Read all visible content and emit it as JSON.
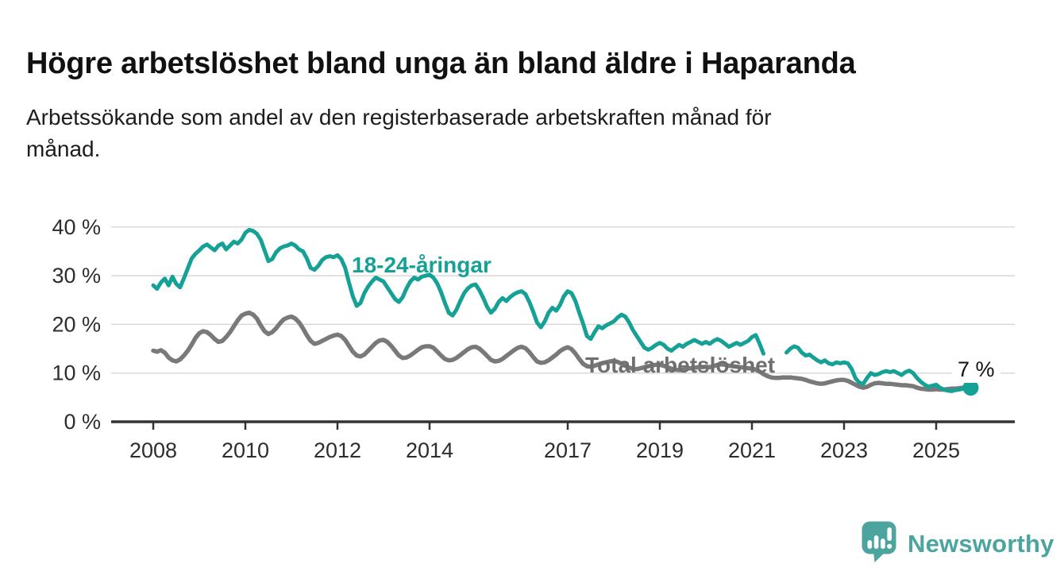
{
  "header": {
    "title": "Högre arbetslöshet bland unga än bland äldre i Haparanda",
    "subtitle_lines": [
      "Arbetssökande som andel av den registerbaserade arbetskraften månad för",
      "månad."
    ]
  },
  "annotations": {
    "young_series_label": "18-24-åringar",
    "total_series_label": "Total arbetslöshet",
    "end_value_label": "7 %"
  },
  "footer": {
    "brand_name": "Newsworthy",
    "logo_icon": "speech-bubble-bar-chart-exclamation",
    "brand_color": "#4BA59E"
  },
  "colors": {
    "young_line": "#15A195",
    "total_line": "#797979",
    "grid": "#D8D8D8",
    "axis": "#333333",
    "axis_text": "#2D2D2D",
    "title_text": "#111111"
  },
  "chart_data": {
    "type": "line",
    "unit": "%",
    "x_range_note": "monthly, Jan 2008 - Oct 2025",
    "ylim": [
      0,
      42
    ],
    "grid": true,
    "legend_position": "inline-labels",
    "y_ticks": [
      {
        "label": "0 %",
        "value": 0
      },
      {
        "label": "10 %",
        "value": 10
      },
      {
        "label": "20 %",
        "value": 20
      },
      {
        "label": "30 %",
        "value": 30
      },
      {
        "label": "40 %",
        "value": 40
      }
    ],
    "x_ticks": [
      {
        "label": "2008",
        "year": 2008
      },
      {
        "label": "2010",
        "year": 2010
      },
      {
        "label": "2012",
        "year": 2012
      },
      {
        "label": "2014",
        "year": 2014
      },
      {
        "label": "2017",
        "year": 2017
      },
      {
        "label": "2019",
        "year": 2019
      },
      {
        "label": "2021",
        "year": 2021
      },
      {
        "label": "2023",
        "year": 2023
      },
      {
        "label": "2025",
        "year": 2025
      }
    ],
    "series": [
      {
        "name": "18-24-åringar",
        "color": "#15A195",
        "width": 5,
        "monthly": {
          "2008": [
            28.0,
            27.3,
            28.6,
            29.4,
            28.0,
            29.8,
            28.3,
            27.6,
            29.5,
            31.5,
            33.5,
            34.5
          ],
          "2009": [
            35.2,
            36.0,
            36.4,
            35.8,
            35.2,
            36.2,
            36.6,
            35.4,
            36.2,
            37.0,
            36.6,
            37.4
          ],
          "2010": [
            38.8,
            39.4,
            39.2,
            38.6,
            37.4,
            35.2,
            33.0,
            33.4,
            34.8,
            35.6,
            36.0,
            36.2
          ],
          "2011": [
            36.6,
            36.2,
            35.4,
            35.0,
            33.6,
            31.6,
            31.2,
            32.0,
            33.2,
            33.8,
            34.0,
            33.8
          ],
          "2012": [
            34.2,
            33.4,
            31.6,
            28.6,
            25.8,
            23.8,
            24.4,
            26.4,
            27.8,
            28.8,
            29.6,
            29.2
          ],
          "2013": [
            28.8,
            27.6,
            26.4,
            25.2,
            24.6,
            25.6,
            27.4,
            28.8,
            29.6,
            29.2,
            29.8,
            30.0
          ],
          "2014": [
            30.2,
            29.6,
            28.4,
            26.6,
            24.4,
            22.4,
            21.8,
            23.0,
            24.8,
            26.4,
            27.4,
            28.0
          ],
          "2015": [
            28.2,
            27.0,
            25.4,
            23.6,
            22.4,
            23.2,
            24.6,
            25.4,
            24.8,
            25.6,
            26.2,
            26.6
          ],
          "2016": [
            26.8,
            26.2,
            24.6,
            22.6,
            20.4,
            19.4,
            20.6,
            22.4,
            23.4,
            22.8,
            24.0,
            25.8
          ],
          "2017": [
            26.8,
            26.4,
            24.8,
            22.4,
            20.2,
            17.6,
            17.0,
            18.4,
            19.6,
            19.2,
            19.8,
            20.2
          ],
          "2018": [
            20.6,
            21.4,
            22.0,
            21.6,
            20.4,
            18.8,
            17.6,
            16.4,
            15.2,
            14.8,
            15.2,
            15.8
          ],
          "2019": [
            16.2,
            15.8,
            15.0,
            14.6,
            15.2,
            15.8,
            15.4,
            16.0,
            16.4,
            16.8,
            16.4,
            16.0
          ],
          "2020": [
            16.4,
            16.0,
            16.6,
            17.0,
            16.6,
            16.0,
            15.4,
            15.8,
            16.2,
            15.8,
            16.2,
            16.6
          ],
          "2021": [
            17.4,
            17.8,
            16.0,
            14.0,
            null,
            null,
            null,
            null,
            null,
            14.2,
            15.0,
            15.5
          ],
          "2022": [
            15.2,
            14.2,
            13.6,
            13.8,
            13.2,
            12.6,
            12.2,
            12.6,
            12.0,
            11.8,
            12.2,
            12.0
          ],
          "2023": [
            12.2,
            12.0,
            10.8,
            8.9,
            8.0,
            7.8,
            9.0,
            10.0,
            9.6,
            9.8,
            10.2,
            10.4
          ],
          "2024": [
            10.2,
            10.4,
            10.0,
            9.6,
            10.2,
            10.5,
            10.0,
            9.0,
            8.2,
            7.6,
            7.2,
            7.4
          ],
          "2025": [
            7.6,
            7.0,
            6.6,
            6.4,
            6.3,
            6.5,
            6.6,
            6.8,
            6.9,
            7.0
          ]
        }
      },
      {
        "name": "Total arbetslöshet",
        "color": "#797979",
        "width": 5.5,
        "monthly": {
          "2008": [
            14.6,
            14.4,
            14.7,
            14.2,
            13.2,
            12.6,
            12.4,
            12.8,
            13.6,
            14.6,
            15.8,
            17.2
          ],
          "2009": [
            18.2,
            18.6,
            18.4,
            17.8,
            17.0,
            16.4,
            16.6,
            17.4,
            18.4,
            19.6,
            20.8,
            21.8
          ],
          "2010": [
            22.2,
            22.4,
            22.0,
            21.2,
            19.8,
            18.6,
            18.0,
            18.4,
            19.2,
            20.2,
            21.0,
            21.4
          ],
          "2011": [
            21.6,
            21.2,
            20.4,
            19.2,
            17.8,
            16.6,
            16.0,
            16.2,
            16.6,
            17.0,
            17.4,
            17.7
          ],
          "2012": [
            17.9,
            17.6,
            16.8,
            15.6,
            14.4,
            13.6,
            13.4,
            13.8,
            14.6,
            15.4,
            16.2,
            16.7
          ],
          "2013": [
            16.8,
            16.4,
            15.6,
            14.6,
            13.6,
            13.1,
            13.2,
            13.6,
            14.2,
            14.8,
            15.3,
            15.5
          ],
          "2014": [
            15.5,
            15.2,
            14.4,
            13.6,
            12.9,
            12.6,
            12.7,
            13.1,
            13.7,
            14.3,
            14.9,
            15.3
          ],
          "2015": [
            15.4,
            15.0,
            14.3,
            13.5,
            12.7,
            12.4,
            12.5,
            12.9,
            13.5,
            14.1,
            14.7,
            15.2
          ],
          "2016": [
            15.4,
            15.1,
            14.3,
            13.3,
            12.4,
            12.1,
            12.2,
            12.6,
            13.2,
            13.8,
            14.5,
            15.0
          ],
          "2017": [
            15.3,
            14.9,
            14.0,
            12.9,
            11.9,
            11.4,
            11.3,
            11.5,
            11.8,
            12.0,
            12.2,
            12.4
          ],
          "2018": [
            12.5,
            12.3,
            11.9,
            11.5,
            11.1,
            10.9,
            10.8,
            11.0,
            11.2,
            11.4,
            11.6,
            11.7
          ],
          "2019": [
            11.7,
            11.5,
            11.2,
            10.9,
            10.7,
            10.6,
            10.7,
            10.9,
            11.0,
            11.1,
            11.2,
            11.2
          ],
          "2020": [
            11.3,
            11.2,
            11.4,
            11.7,
            11.8,
            11.7,
            11.5,
            11.4,
            11.3,
            11.2,
            11.1,
            11.0
          ],
          "2021": [
            10.9,
            10.7,
            10.3,
            9.8,
            9.4,
            9.1,
            9.0,
            9.0,
            9.1,
            9.1,
            9.1,
            9.0
          ],
          "2022": [
            8.9,
            8.8,
            8.6,
            8.3,
            8.1,
            7.9,
            7.8,
            7.9,
            8.1,
            8.3,
            8.5,
            8.6
          ],
          "2023": [
            8.6,
            8.4,
            8.0,
            7.6,
            7.2,
            7.0,
            7.2,
            7.6,
            7.9,
            8.0,
            7.9,
            7.8
          ],
          "2024": [
            7.8,
            7.7,
            7.6,
            7.5,
            7.5,
            7.4,
            7.3,
            7.0,
            6.8,
            6.7,
            6.6,
            6.6
          ],
          "2025": [
            6.7,
            6.6,
            6.6,
            6.7,
            6.8,
            6.8,
            6.9,
            7.0,
            7.1,
            7.3
          ]
        }
      }
    ],
    "end_annotation": {
      "series": "18-24-åringar",
      "label": "7 %",
      "value": 7.0
    }
  }
}
